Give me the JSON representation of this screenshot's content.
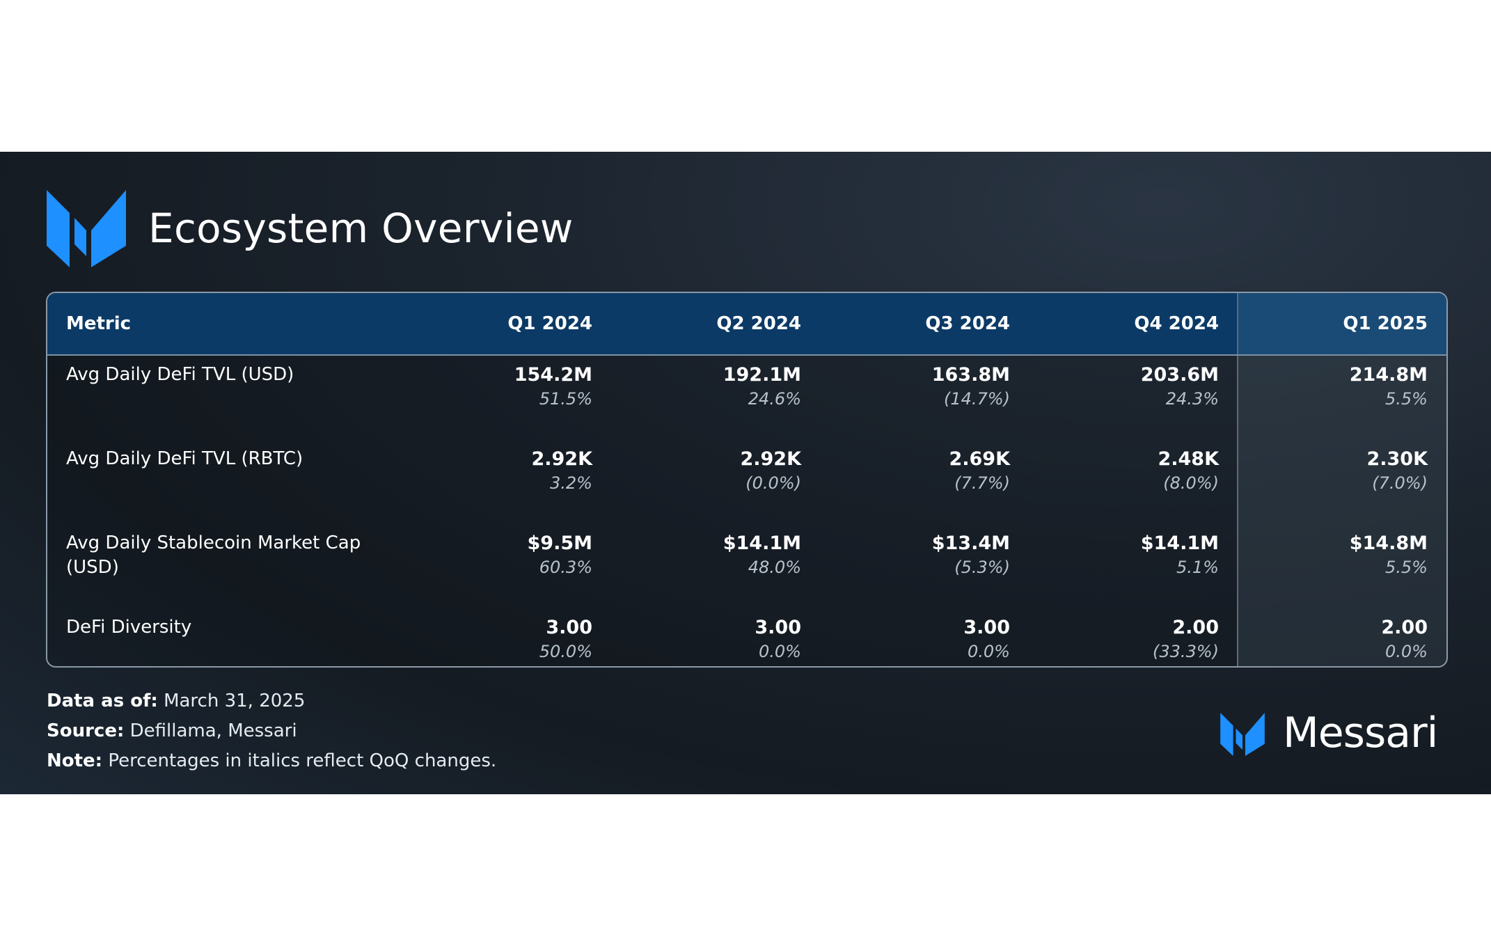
{
  "title": "Ecosystem Overview",
  "brand": "Messari",
  "colors": {
    "accent": "#1e90ff",
    "header": "#0c3a66",
    "highlight_header": "#1a4b76"
  },
  "chart_data": {
    "type": "table",
    "columns": [
      "Metric",
      "Q1 2024",
      "Q2 2024",
      "Q3 2024",
      "Q4 2024",
      "Q1 2025"
    ],
    "highlight_column": "Q1 2025",
    "rows": [
      {
        "metric": "Avg Daily DeFi TVL (USD)",
        "values": [
          "154.2M",
          "192.1M",
          "163.8M",
          "203.6M",
          "214.8M"
        ],
        "changes": [
          "51.5%",
          "24.6%",
          "(14.7%)",
          "24.3%",
          "5.5%"
        ]
      },
      {
        "metric": "Avg Daily DeFi TVL (RBTC)",
        "values": [
          "2.92K",
          "2.92K",
          "2.69K",
          "2.48K",
          "2.30K"
        ],
        "changes": [
          "3.2%",
          "(0.0%)",
          "(7.7%)",
          "(8.0%)",
          "(7.0%)"
        ]
      },
      {
        "metric": "Avg Daily Stablecoin Market Cap (USD)",
        "values": [
          "$9.5M",
          "$14.1M",
          "$13.4M",
          "$14.1M",
          "$14.8M"
        ],
        "changes": [
          "60.3%",
          "48.0%",
          "(5.3%)",
          "5.1%",
          "5.5%"
        ]
      },
      {
        "metric": "DeFi Diversity",
        "values": [
          "3.00",
          "3.00",
          "3.00",
          "2.00",
          "2.00"
        ],
        "changes": [
          "50.0%",
          "0.0%",
          "0.0%",
          "(33.3%)",
          "0.0%"
        ]
      }
    ]
  },
  "footer": {
    "data_as_of_label": "Data as of:",
    "data_as_of": "March 31, 2025",
    "source_label": "Source:",
    "source": "Defillama, Messari",
    "note_label": "Note:",
    "note": "Percentages in italics reflect QoQ changes."
  }
}
